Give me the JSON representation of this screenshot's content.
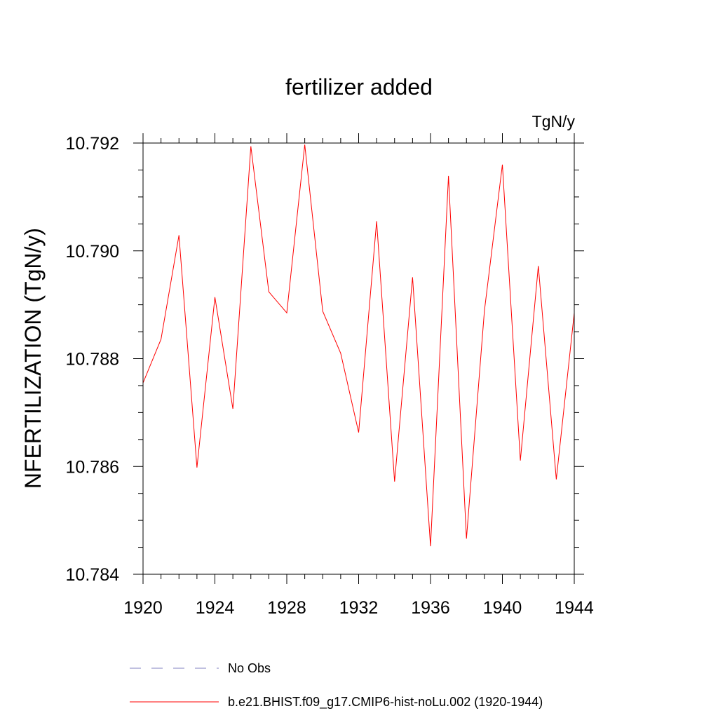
{
  "chart_data": {
    "type": "line",
    "title": "fertilizer added",
    "units": "TgN/y",
    "ylabel": "NFERTILIZATION  (TgN/y)",
    "xlabel": "",
    "xlim": [
      1920,
      1944
    ],
    "ylim": [
      10.784,
      10.792
    ],
    "xticks": [
      1920,
      1924,
      1928,
      1932,
      1936,
      1940,
      1944
    ],
    "yticks": [
      10.784,
      10.786,
      10.788,
      10.79,
      10.792
    ],
    "ytick_labels": [
      "10.784",
      "10.786",
      "10.788",
      "10.790",
      "10.792"
    ],
    "grid": false,
    "legend_position": "bottom",
    "series": [
      {
        "name": "b.e21.BHIST.f09_g17.CMIP6-hist-noLu.002 (1920-1944)",
        "color": "#ff0000",
        "style": "solid",
        "x": [
          1920,
          1921,
          1922,
          1923,
          1924,
          1925,
          1926,
          1927,
          1928,
          1929,
          1930,
          1931,
          1932,
          1933,
          1934,
          1935,
          1936,
          1937,
          1938,
          1939,
          1940,
          1941,
          1942,
          1943,
          1944
        ],
        "y": [
          10.78755,
          10.78836,
          10.79029,
          10.78598,
          10.78914,
          10.78707,
          10.79194,
          10.78924,
          10.78885,
          10.79197,
          10.78888,
          10.7881,
          10.78663,
          10.79055,
          10.78572,
          10.78951,
          10.78452,
          10.79139,
          10.78466,
          10.78889,
          10.7916,
          10.78611,
          10.78972,
          10.78576,
          10.78885
        ]
      }
    ],
    "legend": [
      {
        "label": "No Obs",
        "color": "#8080c0",
        "style": "dashed"
      },
      {
        "label": "b.e21.BHIST.f09_g17.CMIP6-hist-noLu.002 (1920-1944)",
        "color": "#ff0000",
        "style": "solid"
      }
    ]
  }
}
